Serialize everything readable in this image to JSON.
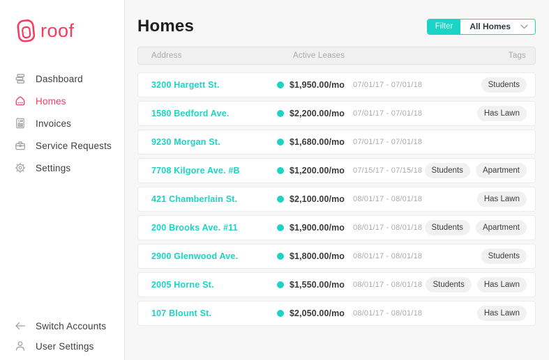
{
  "brand": {
    "name": "roof",
    "color": "#fb3a5f"
  },
  "colors": {
    "accent_pink": "#fb3a5f",
    "accent_teal": "#1cd4c5",
    "main_bg": "#f7f7f8"
  },
  "sidebar": {
    "items": [
      {
        "label": "Dashboard",
        "icon": "dashboard-icon",
        "active": false
      },
      {
        "label": "Homes",
        "icon": "home-icon",
        "active": true
      },
      {
        "label": "Invoices",
        "icon": "invoice-icon",
        "active": false
      },
      {
        "label": "Service Requests",
        "icon": "briefcase-icon",
        "active": false
      },
      {
        "label": "Settings",
        "icon": "gear-icon",
        "active": false
      }
    ],
    "footer_items": [
      {
        "label": "Switch Accounts",
        "icon": "arrow-left-icon"
      },
      {
        "label": "User Settings",
        "icon": "user-icon"
      }
    ]
  },
  "header": {
    "title": "Homes",
    "filter_label": "Filter",
    "filter_value": "All Homes"
  },
  "table": {
    "columns": [
      "Address",
      "Active Leases",
      "Tags"
    ],
    "rows": [
      {
        "address": "3200 Hargett St.",
        "rent": "$1,950.00/mo",
        "dates": "07/01/17 - 07/01/18",
        "tags": [
          "Students"
        ]
      },
      {
        "address": "1580 Bedford Ave.",
        "rent": "$2,200.00/mo",
        "dates": "07/01/17 - 07/01/18",
        "tags": [
          "Has Lawn"
        ]
      },
      {
        "address": "9230 Morgan St.",
        "rent": "$1,680.00/mo",
        "dates": "07/01/17 - 07/01/18",
        "tags": []
      },
      {
        "address": "7708 Kilgore Ave. #B",
        "rent": "$1,200.00/mo",
        "dates": "07/15/17 - 07/15/18",
        "tags": [
          "Students",
          "Apartment"
        ]
      },
      {
        "address": "421 Chamberlain St.",
        "rent": "$2,100.00/mo",
        "dates": "08/01/17 - 08/01/18",
        "tags": [
          "Has Lawn"
        ]
      },
      {
        "address": "200 Brooks Ave. #11",
        "rent": "$1,900.00/mo",
        "dates": "08/01/17 - 08/01/18",
        "tags": [
          "Students",
          "Apartment"
        ]
      },
      {
        "address": "2900 Glenwood Ave.",
        "rent": "$1,800.00/mo",
        "dates": "08/01/17 - 08/01/18",
        "tags": [
          "Students"
        ]
      },
      {
        "address": "2005 Horne St.",
        "rent": "$1,550.00/mo",
        "dates": "08/01/17 - 08/01/18",
        "tags": [
          "Students",
          "Has Lawn"
        ]
      },
      {
        "address": "107 Blount St.",
        "rent": "$2,050.00/mo",
        "dates": "08/01/17 - 08/01/18",
        "tags": [
          "Has Lawn"
        ]
      }
    ]
  }
}
